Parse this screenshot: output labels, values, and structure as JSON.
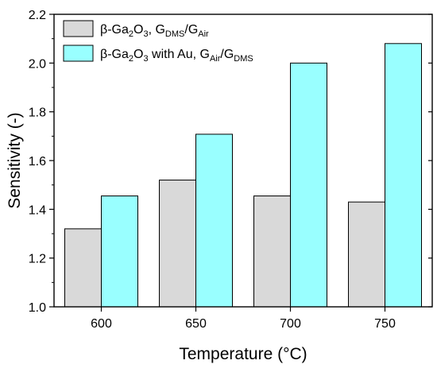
{
  "chart_data": {
    "type": "bar",
    "categories": [
      "600",
      "650",
      "700",
      "750"
    ],
    "series": [
      {
        "name_parts": [
          "β-Ga",
          "2",
          "O",
          "3",
          ", G",
          "DMS",
          "/G",
          "Air"
        ],
        "color": "#d9d9d9",
        "values": [
          1.32,
          1.52,
          1.455,
          1.43
        ]
      },
      {
        "name_parts": [
          "β-Ga",
          "2",
          "O",
          "3",
          " with Au, G",
          "Air",
          "/G",
          "DMS"
        ],
        "color": "#99ffff",
        "values": [
          1.455,
          1.708,
          2.0,
          2.08
        ]
      }
    ],
    "title": "",
    "xlabel": "Temperature (°C)",
    "ylabel": "Sensitivity (-)",
    "ylim": [
      1.0,
      2.2
    ],
    "yticks": [
      "1.0",
      "1.2",
      "1.4",
      "1.6",
      "1.8",
      "2.0",
      "2.2"
    ],
    "grid": false,
    "legend_position": "top-left"
  }
}
